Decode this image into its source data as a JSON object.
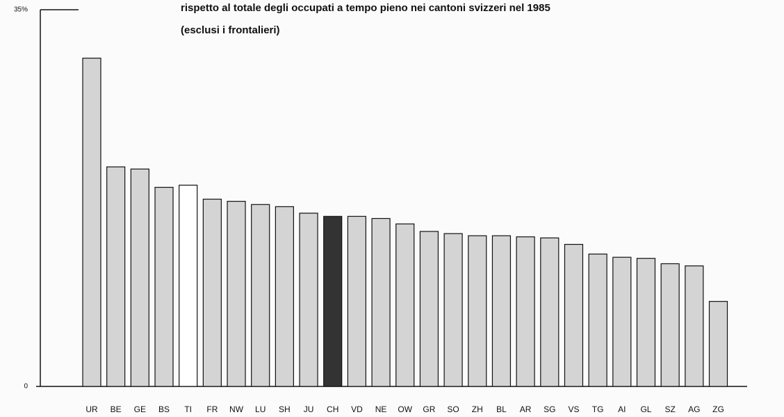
{
  "chart_data": {
    "type": "bar",
    "title": [
      "rispetto al totale degli occupati a tempo pieno nei cantoni svizzeri nel 1985",
      "(esclusi i frontalieri)"
    ],
    "categories": [
      "UR",
      "BE",
      "GE",
      "BS",
      "TI",
      "FR",
      "NW",
      "LU",
      "SH",
      "JU",
      "CH",
      "VD",
      "NE",
      "OW",
      "GR",
      "SO",
      "ZH",
      "BL",
      "AR",
      "SG",
      "VS",
      "TG",
      "AI",
      "GL",
      "SZ",
      "AG",
      "ZG"
    ],
    "values": [
      30.5,
      20.4,
      20.2,
      18.5,
      18.7,
      17.4,
      17.2,
      16.9,
      16.7,
      16.1,
      15.8,
      15.8,
      15.6,
      15.1,
      14.4,
      14.2,
      14.0,
      14.0,
      13.9,
      13.8,
      13.2,
      12.3,
      12.0,
      11.9,
      11.4,
      11.2,
      7.9
    ],
    "colors": [
      "#d4d4d4",
      "#d4d4d4",
      "#d4d4d4",
      "#d4d4d4",
      "#ffffff",
      "#d4d4d4",
      "#d4d4d4",
      "#d4d4d4",
      "#d4d4d4",
      "#d4d4d4",
      "#333333",
      "#d4d4d4",
      "#d4d4d4",
      "#d4d4d4",
      "#d4d4d4",
      "#d4d4d4",
      "#d4d4d4",
      "#d4d4d4",
      "#d4d4d4",
      "#d4d4d4",
      "#d4d4d4",
      "#d4d4d4",
      "#d4d4d4",
      "#d4d4d4",
      "#d4d4d4",
      "#d4d4d4",
      "#d4d4d4"
    ],
    "ylim": [
      0,
      35
    ],
    "yticks": [
      0,
      {
        "value": 35,
        "label": "35%"
      }
    ]
  }
}
